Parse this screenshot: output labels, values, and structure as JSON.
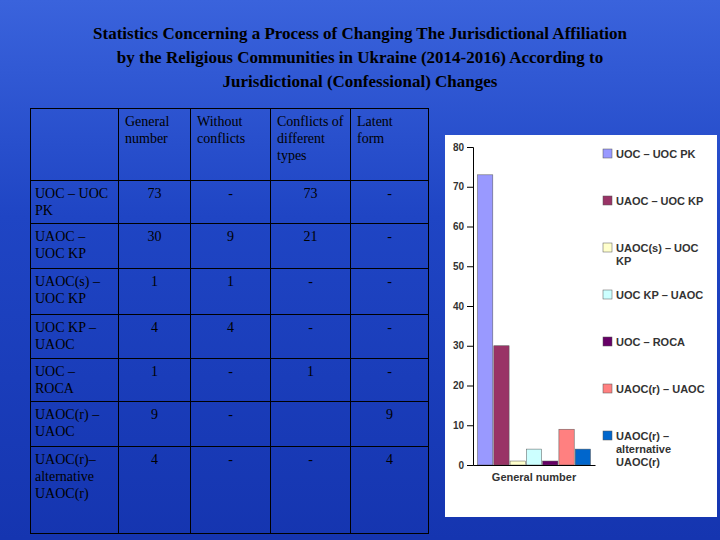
{
  "title": [
    "Statistics Concerning a Process of Changing The Jurisdictional Affiliation",
    "by the Religious Communities in Ukraine (2014-2016) According to",
    "Jurisdictional (Confessional) Changes"
  ],
  "table": {
    "columns": [
      null,
      "General number",
      "Without conflicts",
      "Conflicts of different types",
      "Latent form"
    ],
    "rows": [
      [
        "UOC – UOC PK",
        73,
        "-",
        73,
        "-"
      ],
      [
        "UAOC – UOC KP",
        30,
        9,
        21,
        "-"
      ],
      [
        "UAOC(s) – UOC KP",
        1,
        1,
        "-",
        "-"
      ],
      [
        "UOC KP – UAOC",
        4,
        4,
        "-",
        "-"
      ],
      [
        "UOC – ROCA",
        1,
        "-",
        1,
        "-"
      ],
      [
        "UAOC(r) – UAOC",
        9,
        "-",
        null,
        9
      ],
      [
        "UAOC(r)– alternative UAOC(r)",
        4,
        "-",
        "-",
        4
      ]
    ]
  },
  "chart_data": {
    "type": "bar",
    "categories": [
      "General number"
    ],
    "series": [
      {
        "name": "UOC – UOC PK",
        "color": "#9999ff",
        "values": [
          73
        ]
      },
      {
        "name": "UAOC – UOC KP",
        "color": "#993366",
        "values": [
          30
        ]
      },
      {
        "name": "UAOC(s) – UOC KP",
        "color": "#ffffcc",
        "values": [
          1
        ]
      },
      {
        "name": "UOC KP – UAOC",
        "color": "#ccffff",
        "values": [
          4
        ]
      },
      {
        "name": "UOC – ROCA",
        "color": "#660066",
        "values": [
          1
        ]
      },
      {
        "name": "UAOC(r) – UAOC",
        "color": "#ff8080",
        "values": [
          9
        ]
      },
      {
        "name": "UAOC(r) – alternative UAOC(r)",
        "color": "#0066cc",
        "values": [
          4
        ]
      }
    ],
    "ylim": [
      0,
      80
    ],
    "yticks": [
      0,
      10,
      20,
      30,
      40,
      50,
      60,
      70,
      80
    ],
    "grid": false,
    "legend": "right"
  }
}
